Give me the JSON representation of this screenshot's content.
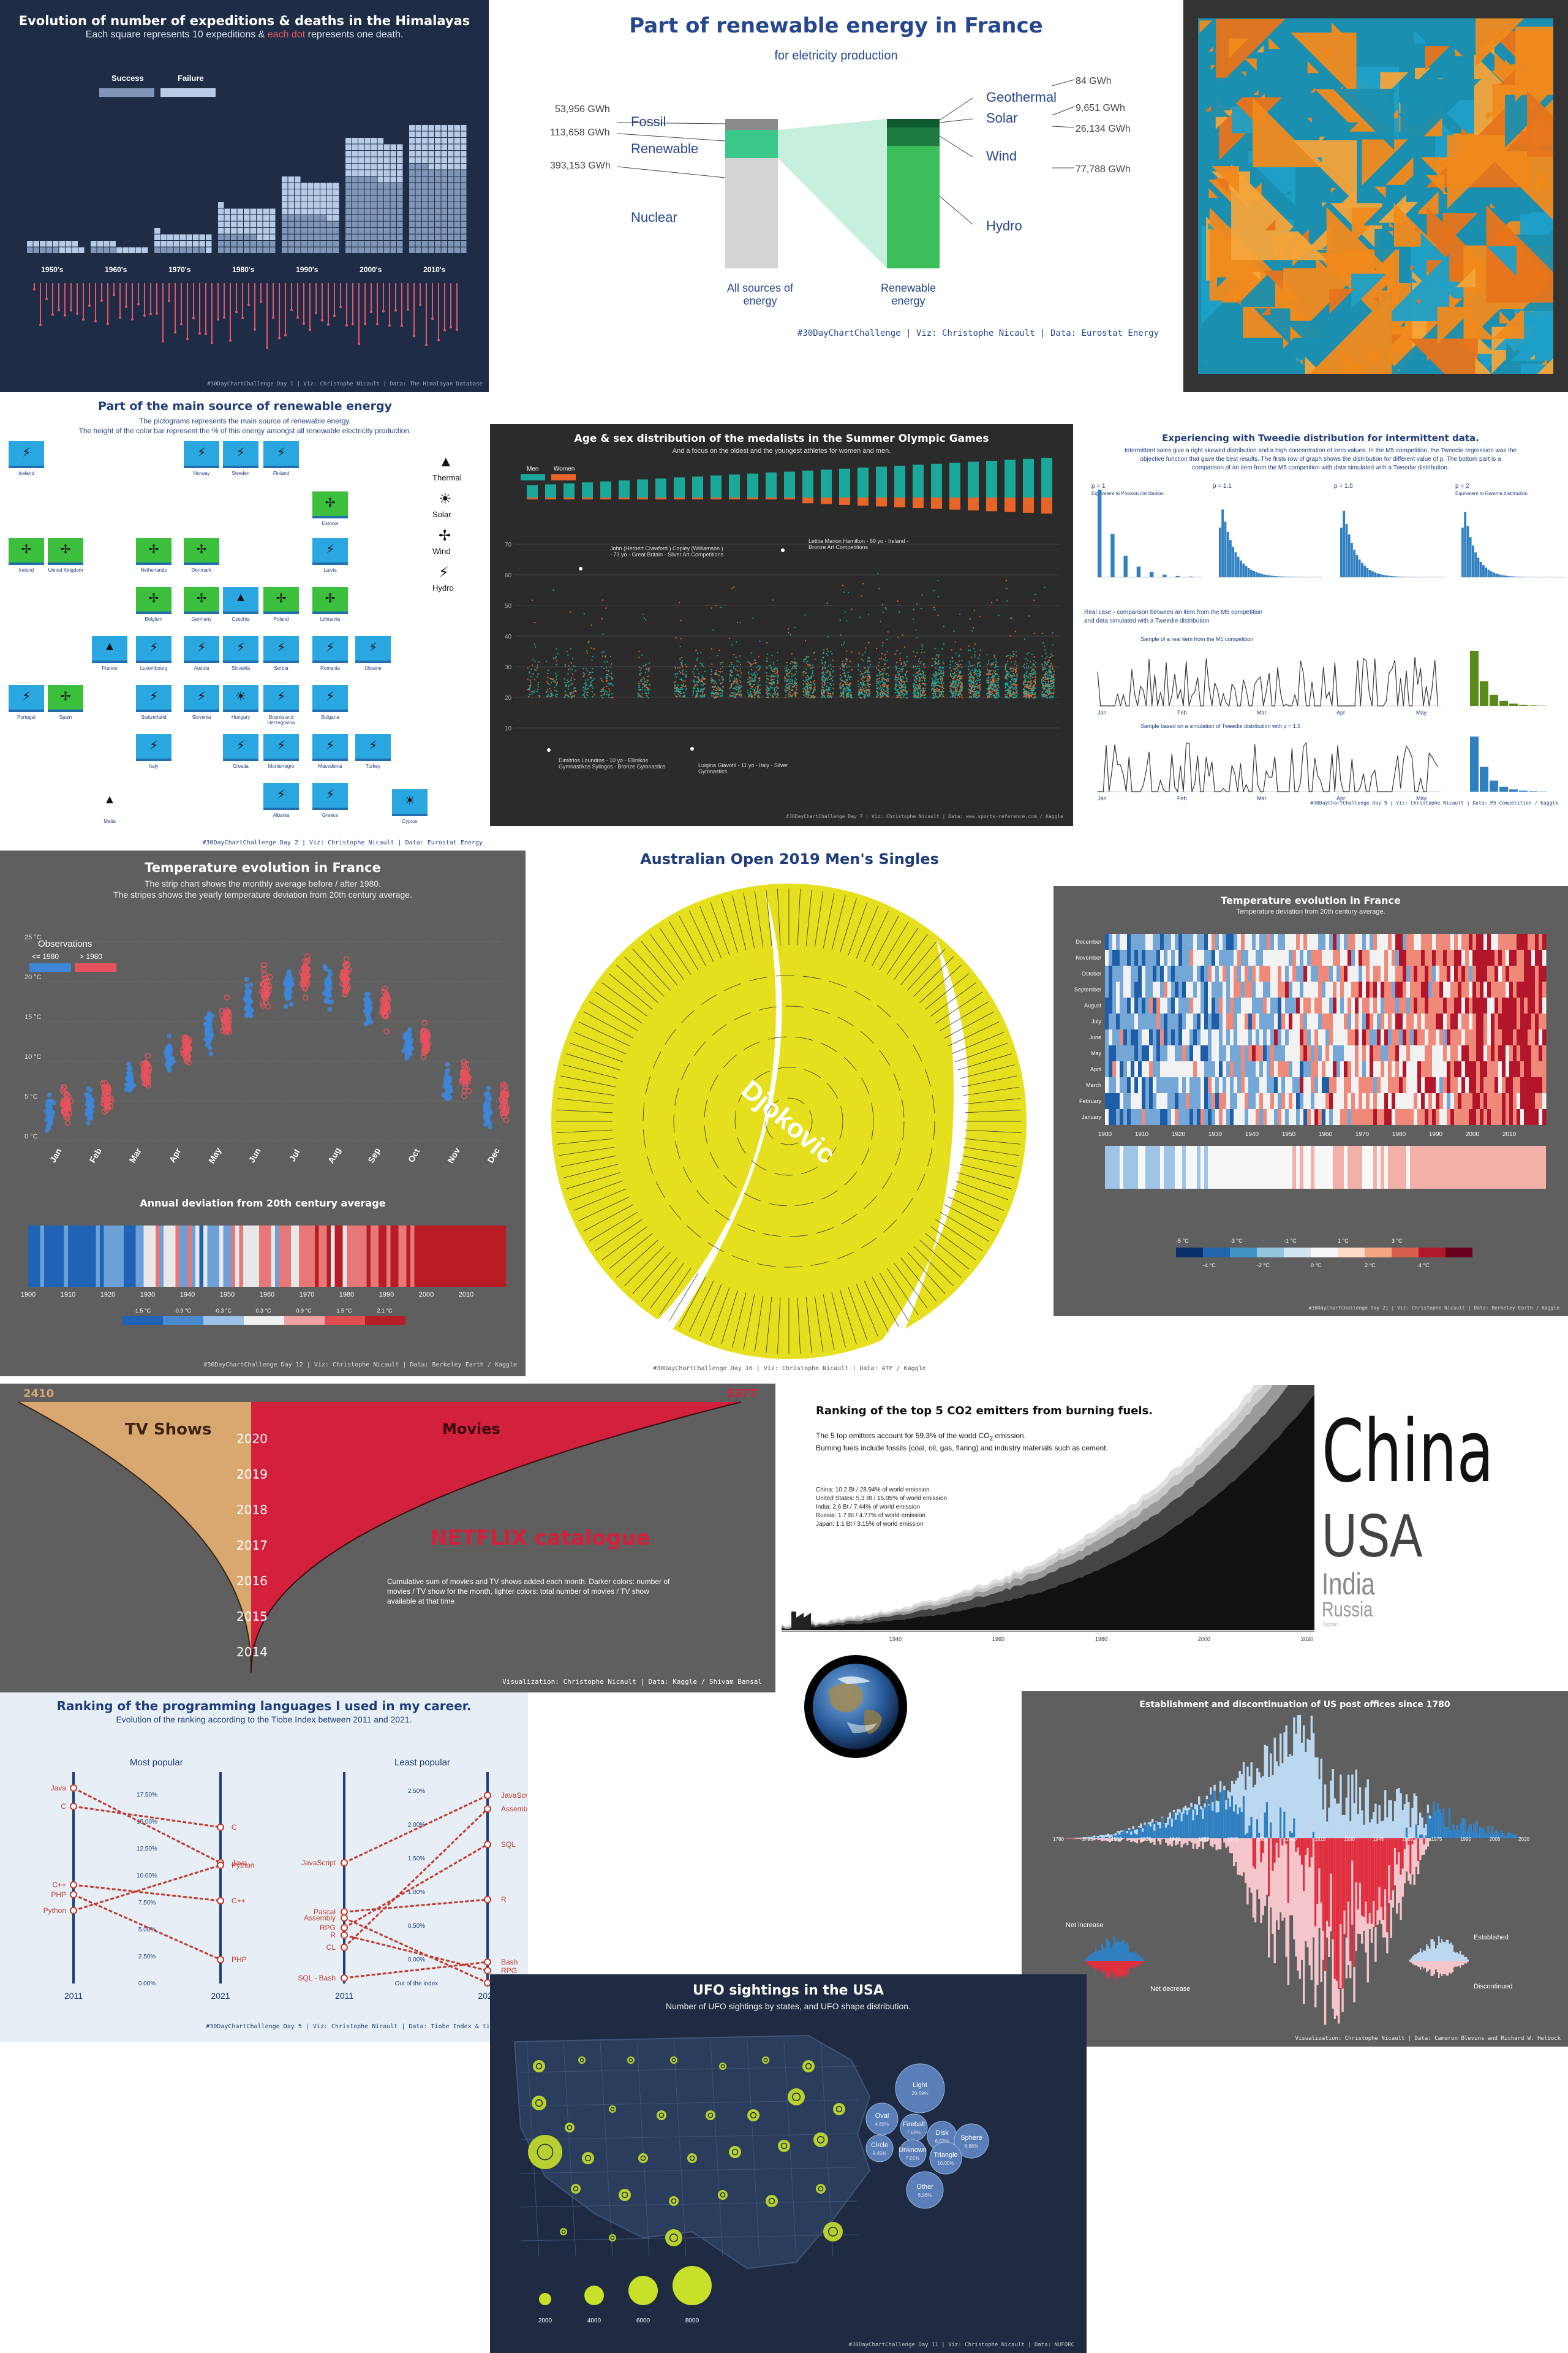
{
  "colors": {
    "navy": "#1e2d45",
    "olympic_bg": "#2b2b2b",
    "grey_bg": "#5f5f5f",
    "teal": "#1aa89a",
    "orange": "#e8652a",
    "blue": "#2f7fc1",
    "red": "#d33a3a",
    "green": "#3cbf5a",
    "yellow": "#e6df1e",
    "netflix_red": "#d3203c",
    "tan": "#d8a870"
  },
  "himalaya": {
    "title": "Evolution of number of expeditions & deaths in the Himalayas",
    "subtitle_a": "Each square represents 10 expeditions & ",
    "subtitle_b": "each dot",
    "subtitle_c": " represents one death.",
    "legend": [
      "Success",
      "Failure"
    ],
    "caption": "#30DayChartChallenge Day 1 | Viz: Christophe Nicault | Data: The Himalayan Database",
    "chart_data": {
      "type": "bar",
      "categories": [
        "1950's",
        "1960's",
        "1970's",
        "1980's",
        "1990's",
        "2000's",
        "2010's"
      ],
      "series": [
        {
          "name": "Success",
          "values": [
            5,
            4,
            8,
            24,
            52,
            104,
            120
          ]
        },
        {
          "name": "Failure",
          "values": [
            12,
            9,
            20,
            40,
            50,
            55,
            60
          ]
        }
      ],
      "unit": "squares of 10 expeditions"
    }
  },
  "france_renew": {
    "title": "Part of renewable energy in France",
    "subtitle": "for eletricity production",
    "left_labels": [
      "Fossil",
      "Renewable",
      "Nuclear"
    ],
    "left_values": [
      "53,956 GWh",
      "113,658 GWh",
      "393,153 GWh"
    ],
    "right_labels": [
      "Geothermal",
      "Solar",
      "Wind",
      "Hydro"
    ],
    "right_values": [
      "84 GWh",
      "9,651 GWh",
      "26,134 GWh",
      "77,788 GWh"
    ],
    "col_left": "All sources of energy",
    "col_right": "Renewable energy",
    "caption": "#30DayChartChallenge | Viz: Christophe Nicault | Data: Eurostat Energy",
    "chart_data": {
      "type": "bar",
      "categories": [
        "Fossil",
        "Renewable",
        "Nuclear"
      ],
      "values": [
        53956,
        113658,
        393153
      ],
      "renewable_breakdown": {
        "Geothermal": 84,
        "Solar": 9651,
        "Wind": 26134,
        "Hydro": 77788
      }
    }
  },
  "renew_source": {
    "title": "Part of the main source of renewable energy",
    "sub1": "The pictograms represents the main source of renewable energy.",
    "sub2": "The height of the color bar represent the % of this energy amongst all renewable electricity production.",
    "legend": [
      "Thermal",
      "Solar",
      "Wind",
      "Hydro"
    ],
    "countries": [
      "Iceland",
      "Norway",
      "Sweden",
      "Finland",
      "Estonia",
      "Ireland",
      "United Kingdom",
      "Netherlands",
      "Denmark",
      "Latvia",
      "Belgium",
      "Germany",
      "Czechia",
      "Poland",
      "Lithuania",
      "France",
      "Luxembourg",
      "Austria",
      "Slovakia",
      "Serbia",
      "Romania",
      "Ukraine",
      "Switzerland",
      "Slovenia",
      "Hungary",
      "Bosnia and Herzegovina",
      "Bulgaria",
      "Portugal",
      "Spain",
      "Italy",
      "Croatia",
      "Montenegro",
      "Macedonia",
      "Turkey",
      "Albania",
      "Greece",
      "Malta",
      "Cyprus"
    ],
    "caption": "#30DayChartChallenge Day 2 | Viz: Christophe Nicault | Data: Eurostat Energy"
  },
  "olympic": {
    "title": "Age & sex distribution of the medalists in the Summer Olympic Games",
    "subtitle": "And a focus on the oldest and the youngest athletes for women and men.",
    "legend": [
      "Men",
      "Women"
    ],
    "annotations": [
      "John (Herbert Crawford ) Copley (Williamson ) - 73 yo - Great Britain - Silver Art Competitions",
      "Letitia Marion Hamilton - 69 yo - Ireland - Bronze Art Competitions",
      "Dimitrios Loundras - 10 yo - Ellinikos Gymnastikos Syllogos - Bronze Gymnastics",
      "Luigina Giavotti - 11 yo - Italy - Silver Gymnastics"
    ],
    "y_ticks": [
      "70",
      "60",
      "50",
      "40",
      "30",
      "20",
      "10"
    ],
    "caption": "#30DayChartChallenge Day 7 | Viz: Christophe Nicault | Data: www.sports-reference.com / Kaggle"
  },
  "tweedie": {
    "title": "Experiencing with Tweedie distribution for intermittent data.",
    "text": [
      "Intermittent sales give a right skewed distribution and a high concentration of zero values. In the M5 competition, the Tweedie regression was the",
      "objective function that gave the best results. The firsts row of graph shows the distribution for different value of p. The bottom part is a",
      "comparison of an item from the M5 competition with data simulated with a Tweedie distribution."
    ],
    "p_labels": [
      "p = 1",
      "p = 1.1",
      "p = 1.5",
      "p = 2"
    ],
    "p_notes": [
      "Equivalent to Poisson distribution",
      "",
      "",
      "Equivalent to Gamma distribution"
    ],
    "real_title": "Real case - comparison between an item from the M5 competition",
    "real_title2": "and data simulated with a Tweedie distribution",
    "sample1": "Sample of a real item from the M5 competition",
    "sample2": "Sample based on a simulation of Tweedie distribution with p = 1.5",
    "months": [
      "Jan",
      "Feb",
      "Mar",
      "Apr",
      "May"
    ],
    "caption": "#30DayChartChallenge Day 9 | Viz: Christophe Nicault | Data: M5 Competition / Kaggle"
  },
  "temp_strip": {
    "title": "Temperature evolution in France",
    "sub1": "The strip chart shows the monthly average before / after 1980.",
    "sub2": "The stripes shows the yearly temperature deviation from 20th century average.",
    "legend_title": "Observations",
    "legend": [
      "<= 1980",
      "> 1980"
    ],
    "months": [
      "Jan",
      "Feb",
      "Mar",
      "Apr",
      "May",
      "Jun",
      "Jul",
      "Aug",
      "Sep",
      "Oct",
      "Nov",
      "Dec"
    ],
    "temp_labels": [
      "25 °C",
      "20 °C",
      "15 °C",
      "10 °C",
      "5 °C",
      "0 °C"
    ],
    "annual_title": "Annual deviation from 20th century average",
    "years": [
      "1900",
      "1910",
      "1920",
      "1930",
      "1940",
      "1950",
      "1960",
      "1970",
      "1980",
      "1990",
      "2000",
      "2010"
    ],
    "scale": [
      "-1.5 °C",
      "-0.9 °C",
      "-0.3 °C",
      "0.3 °C",
      "0.9 °C",
      "1.5 °C",
      "2.1 °C"
    ],
    "caption": "#30DayChartChallenge Day 12 | Viz: Christophe Nicault | Data: Berkeley Earth / Kaggle",
    "chart_data": {
      "type": "scatter",
      "x": [
        "Jan",
        "Feb",
        "Mar",
        "Apr",
        "May",
        "Jun",
        "Jul",
        "Aug",
        "Sep",
        "Oct",
        "Nov",
        "Dec"
      ],
      "series": [
        {
          "name": "<= 1980",
          "values": [
            3.5,
            4.5,
            7.5,
            10.5,
            14,
            17.5,
            19.5,
            19,
            16.5,
            12,
            7,
            4
          ]
        },
        {
          "name": "> 1980",
          "values": [
            4.5,
            5.5,
            8.5,
            11.5,
            15,
            19,
            21,
            20.5,
            17,
            13,
            8,
            5
          ]
        }
      ]
    }
  },
  "aus_open": {
    "title": "Australian Open 2019 Men's Singles",
    "winner": "Djokovic",
    "caption": "#30DayChartChallenge Day 16 | Viz: Christophe Nicault | Data: ATP / Kaggle"
  },
  "heatmap": {
    "title": "Temperature evolution in France",
    "subtitle": "Temperature deviation from 20th century average.",
    "months": [
      "December",
      "November",
      "October",
      "September",
      "August",
      "July",
      "June",
      "May",
      "April",
      "March",
      "February",
      "January"
    ],
    "years": [
      "1900",
      "1910",
      "1920",
      "1930",
      "1940",
      "1950",
      "1960",
      "1970",
      "1980",
      "1990",
      "2000",
      "2010"
    ],
    "scale_top": [
      "-5 °C",
      "-3 °C",
      "-1 °C",
      "1 °C",
      "3 °C"
    ],
    "scale_bottom": [
      "-4 °C",
      "-2 °C",
      "0 °C",
      "2 °C",
      "4 °C"
    ],
    "caption": "#30DayChartChallenge Day 21 | Viz: Christophe Nicault | Data: Berkeley Earth / Kaggle"
  },
  "netflix": {
    "left_count": "2410",
    "right_count": "5377",
    "tv_label": "TV Shows",
    "movie_label": "Movies",
    "years": [
      "2020",
      "2019",
      "2018",
      "2017",
      "2016",
      "2015",
      "2014"
    ],
    "big_title": "NETFLIX catalogue",
    "desc": [
      "Cumulative sum of movies and TV shows added each month. Darker colors: number of",
      "movies / TV show for the month, lighter colors: total number of movies / TV show",
      "available at that time"
    ],
    "caption": "Visualization: Christophe Nicault | Data: Kaggle / Shivam Bansal"
  },
  "co2": {
    "title": "Ranking of the top 5 CO2 emitters from burning fuels.",
    "sub1a": "The 5 top emitters account for 59.3% of the world CO",
    "sub1b": "2",
    "sub1c": " emission.",
    "sub2": "Burning fuels include fossils (coal, oil, gas, flaring) and industry materials such as cement.",
    "list": [
      "China: 10.2 Bt / 28.94% of world emission",
      "United States: 5.3 Bt / 15.05% of world emission",
      "India: 2.6 Bt / 7.44% of world emission",
      "Russia: 1.7 Bt / 4.77% of world emission",
      "Japan: 1.1 Bt / 3.15% of world emission"
    ],
    "names": [
      "China",
      "USA",
      "India",
      "Russia",
      "Japan"
    ],
    "x_ticks": [
      "1940",
      "1960",
      "1980",
      "2000",
      "2020"
    ],
    "chart_data": {
      "type": "area",
      "categories": [
        "China",
        "United States",
        "India",
        "Russia",
        "Japan"
      ],
      "values": [
        10.2,
        5.3,
        2.6,
        1.7,
        1.1
      ],
      "unit": "Bt"
    }
  },
  "languages": {
    "title": "Ranking of the programming languages I used in my career.",
    "subtitle": "Evolution of the ranking according to the Tiobe Index between 2011 and 2021.",
    "most": "Most popular",
    "least": "Least popular",
    "most_left": [
      "Java",
      "C",
      "C++",
      "PHP",
      "Python"
    ],
    "most_right": [
      "C",
      "Java",
      "Python",
      "C++",
      "PHP"
    ],
    "most_ticks": [
      "17.50%",
      "15.00%",
      "12.50%",
      "10.00%",
      "7.50%",
      "5.00%",
      "2.50%",
      "0.00%"
    ],
    "least_left": [
      "JavaScript",
      "Pascal",
      "Assembly",
      "RPG",
      "R",
      "CL",
      "SQL - Bash"
    ],
    "least_right": [
      "JavaScript",
      "Assembly",
      "SQL",
      "R",
      "Bash",
      "RPG",
      "Pascal - CL"
    ],
    "least_ticks": [
      "2.50%",
      "2.00%",
      "1.50%",
      "1.00%",
      "0.50%",
      "0.00%"
    ],
    "out_label": "Out of the index",
    "years": [
      "2011",
      "2021",
      "2011",
      "2021"
    ],
    "caption": "#30DayChartChallenge Day 5 | Viz: Christophe Nicault | Data: Tiobe Index & tiobeindex"
  },
  "postoffice": {
    "title": "Establishment and discontinuation of US post offices since 1780",
    "years": [
      "1780",
      "1795",
      "1810",
      "1825",
      "1840",
      "1855",
      "1870",
      "1885",
      "1900",
      "1915",
      "1930",
      "1945",
      "1960",
      "1975",
      "1990",
      "2005",
      "2020"
    ],
    "legend_left": [
      "Net increase",
      "Net decrease"
    ],
    "legend_right": [
      "Established",
      "Discontinued"
    ],
    "caption": "Visualization: Christophe Nicault | Data: Cameron Blevins and Richard W. Helbock"
  },
  "ufo": {
    "title": "UFO sightings in the USA",
    "subtitle": "Number of UFO sightings by states, and UFO shape distribution.",
    "shapes": [
      {
        "name": "Light",
        "pct": "20.69%"
      },
      {
        "name": "Oval",
        "pct": "4.69%"
      },
      {
        "name": "Other",
        "pct": "6.96%"
      },
      {
        "name": "Disk",
        "pct": "6.53%"
      },
      {
        "name": "Sphere",
        "pct": "6.68%"
      },
      {
        "name": "Circle",
        "pct": "9.45%"
      },
      {
        "name": "Fireball",
        "pct": "7.69%"
      },
      {
        "name": "Unknown",
        "pct": "7.01%"
      },
      {
        "name": "Triangle",
        "pct": "10.00%"
      }
    ],
    "size_legend": [
      "2000",
      "4000",
      "6000",
      "8000"
    ],
    "caption": "#30DayChartChallenge Day 11 | Viz: Christophe Nicault | Data: NUFORC"
  }
}
